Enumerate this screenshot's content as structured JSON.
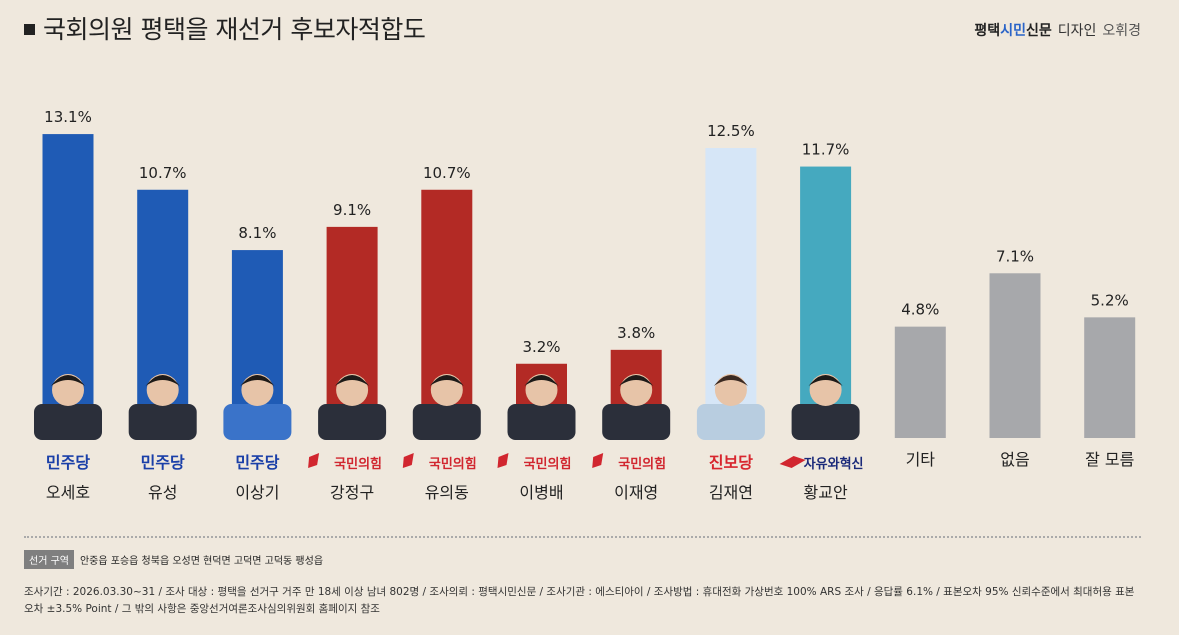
{
  "header": {
    "title": "국회의원 평택을 재선거 후보자적합도",
    "brand_left": "평택",
    "brand_accent": "시민",
    "brand_right": "신문",
    "design_label": "디자인",
    "designer": "오휘경"
  },
  "chart_data": {
    "type": "bar",
    "title": "국회의원 평택을 재선거 후보자적합도",
    "categories": [
      "오세호",
      "유성",
      "이상기",
      "강정구",
      "유의동",
      "이병배",
      "이재영",
      "김재연",
      "황교안",
      "기타",
      "없음",
      "잘 모름"
    ],
    "values": [
      13.1,
      10.7,
      8.1,
      9.1,
      10.7,
      3.2,
      3.8,
      12.5,
      11.7,
      4.8,
      7.1,
      5.2
    ],
    "value_labels": [
      "13.1%",
      "10.7%",
      "8.1%",
      "9.1%",
      "10.7%",
      "3.2%",
      "3.8%",
      "12.5%",
      "11.7%",
      "4.8%",
      "7.1%",
      "5.2%"
    ],
    "parties": [
      "민주당",
      "민주당",
      "민주당",
      "국민의힘",
      "국민의힘",
      "국민의힘",
      "국민의힘",
      "진보당",
      "자유와혁신",
      "",
      "",
      ""
    ],
    "bar_colors": [
      "#1f5bb5",
      "#1f5bb5",
      "#1f5bb5",
      "#b32a25",
      "#b32a25",
      "#b32a25",
      "#b32a25",
      "#d6e6f7",
      "#45a9bf",
      "#a7a8ab",
      "#a7a8ab",
      "#a7a8ab"
    ],
    "party_colors": {
      "민주당": "#1a3fa8",
      "국민의힘": "#d1262f",
      "진보당": "#d8262e",
      "자유와혁신": "#1b2a7a"
    },
    "ylim": [
      0,
      14
    ],
    "grid": false,
    "legend": "none"
  },
  "footer": {
    "region_tag": "선거 구역",
    "region_text": "안중읍 포승읍 청북읍 오성면 현덕면 고덕면 고덕동 팽성읍",
    "survey_note": "조사기간 : 2026.03.30~31 / 조사 대상 : 평택을 선거구 거주 만 18세 이상 남녀 802명 / 조사의뢰 : 평택시민신문 / 조사기관 : 에스티아이 / 조사방법 : 휴대전화 가상번호 100% ARS 조사 / 응답률 6.1% / 표본오차 95% 신뢰수준에서 최대허용 표본오차 ±3.5% Point / 그 밖의 사항은 중앙선거여론조사심의위원회 홈페이지 참조"
  }
}
